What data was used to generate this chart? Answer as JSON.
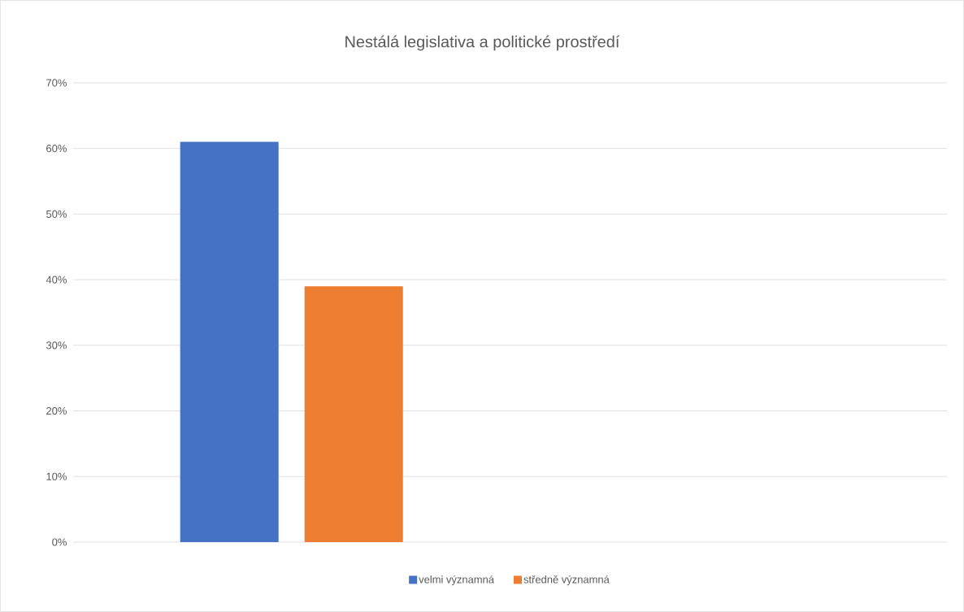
{
  "chart_data": {
    "type": "bar",
    "title": "Nestálá legislativa a politické prostředí",
    "categories": [
      null
    ],
    "series": [
      {
        "name": "velmi významná",
        "color": "#4472c4",
        "values": [
          61
        ]
      },
      {
        "name": "středně významná",
        "color": "#ed7d31",
        "values": [
          39
        ]
      }
    ],
    "ylim": [
      0,
      70
    ],
    "yticks": [
      {
        "value": 0,
        "label": "0%"
      },
      {
        "value": 10,
        "label": "10%"
      },
      {
        "value": 20,
        "label": "20%"
      },
      {
        "value": 30,
        "label": "30%"
      },
      {
        "value": 40,
        "label": "40%"
      },
      {
        "value": 50,
        "label": "50%"
      },
      {
        "value": 60,
        "label": "60%"
      },
      {
        "value": 70,
        "label": "70%"
      }
    ],
    "grid": "y",
    "legend": "bottom"
  }
}
